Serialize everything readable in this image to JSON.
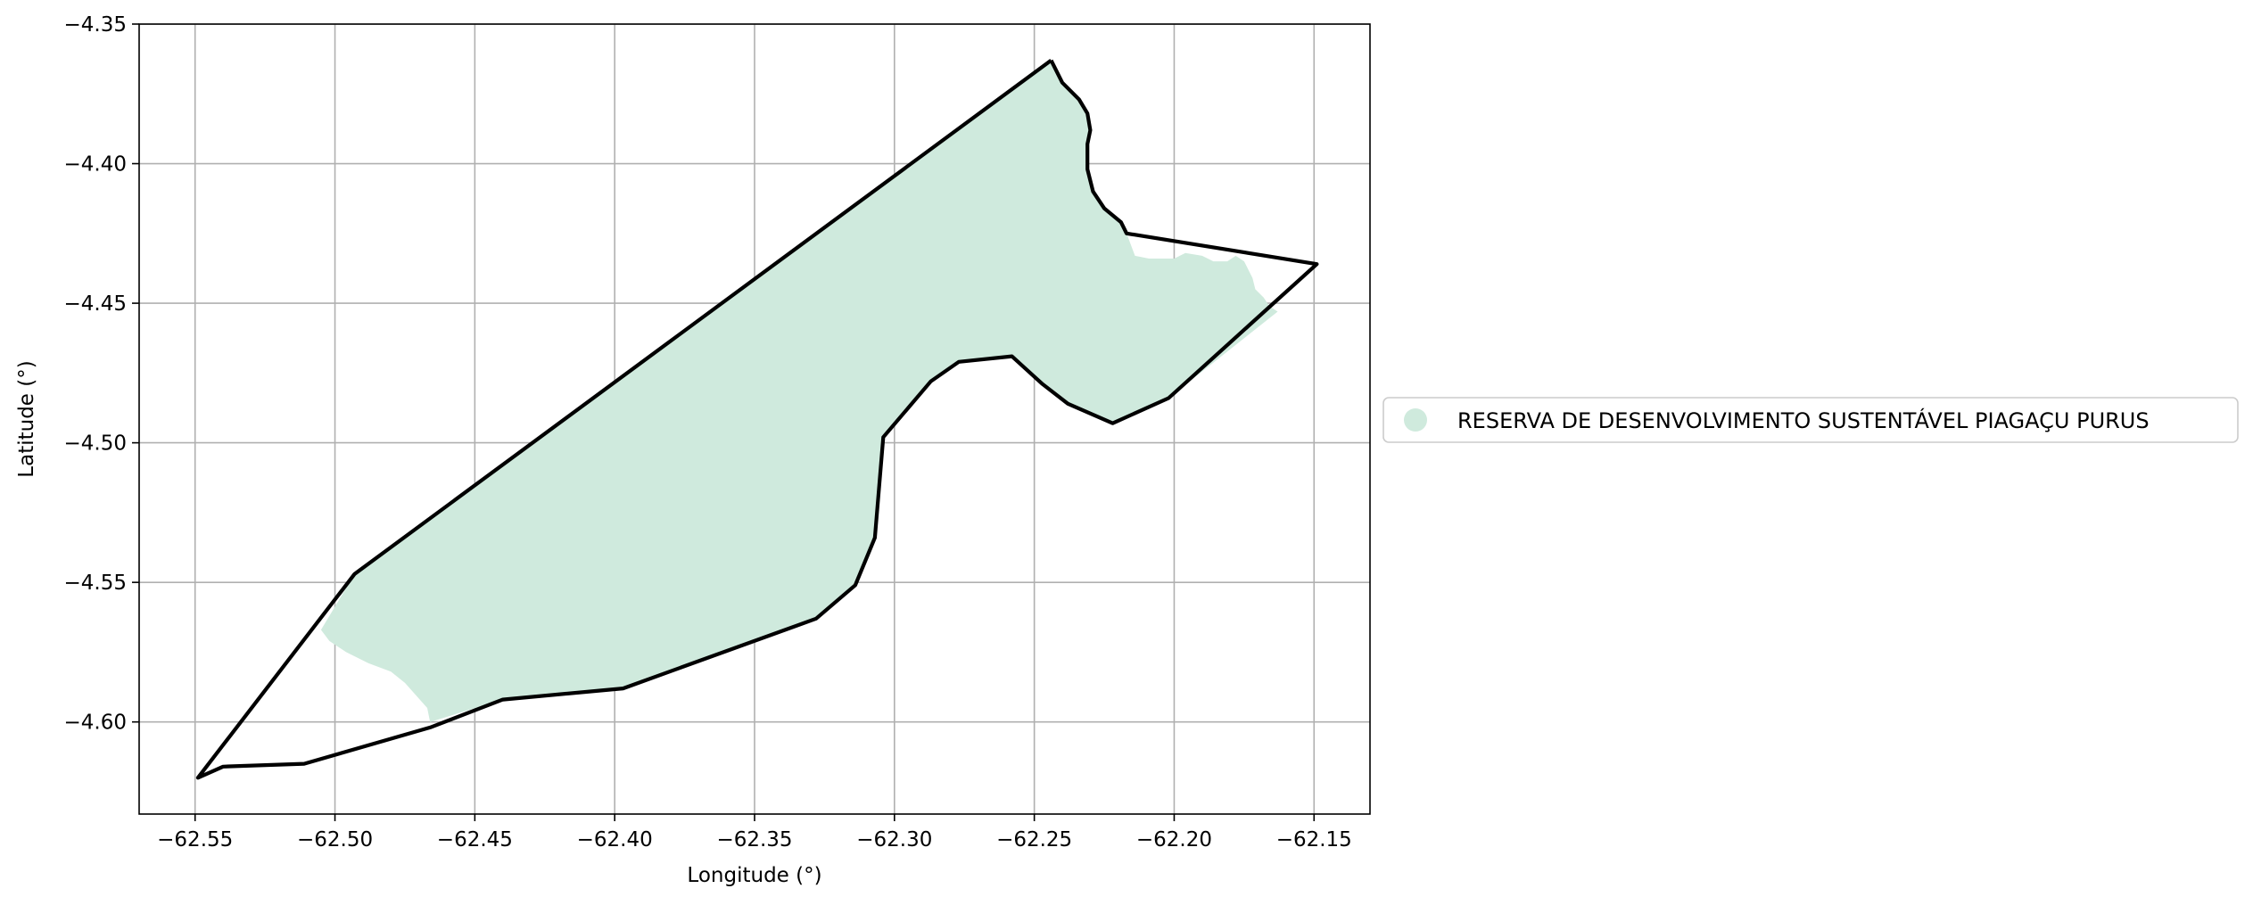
{
  "chart_data": {
    "type": "map",
    "xlabel": "Longitude (°)",
    "ylabel": "Latitude (°)",
    "xlim": [
      -62.57,
      -62.13
    ],
    "ylim": [
      -4.633,
      -4.35
    ],
    "xticks": [
      -62.55,
      -62.5,
      -62.45,
      -62.4,
      -62.35,
      -62.3,
      -62.25,
      -62.2,
      -62.15
    ],
    "yticks": [
      -4.35,
      -4.4,
      -4.45,
      -4.5,
      -4.55,
      -4.6
    ],
    "xtick_labels": [
      "−62.55",
      "−62.50",
      "−62.45",
      "−62.40",
      "−62.35",
      "−62.30",
      "−62.25",
      "−62.20",
      "−62.15"
    ],
    "ytick_labels": [
      "−4.35",
      "−4.40",
      "−4.45",
      "−4.50",
      "−4.55",
      "−4.60"
    ],
    "grid": true,
    "legend_position": "right-center",
    "colors": {
      "area_fill": "#cfeadd",
      "boundary": "#000000",
      "grid": "#b0b0b0"
    },
    "series": [
      {
        "name": "RESERVA DE DESENVOLVIMENTO SUSTENTÁVEL PIAGAÇU PURUS",
        "kind": "area",
        "points": [
          [
            -62.244,
            -4.363
          ],
          [
            -62.24,
            -4.371
          ],
          [
            -62.234,
            -4.377
          ],
          [
            -62.231,
            -4.382
          ],
          [
            -62.23,
            -4.388
          ],
          [
            -62.231,
            -4.393
          ],
          [
            -62.231,
            -4.402
          ],
          [
            -62.229,
            -4.41
          ],
          [
            -62.225,
            -4.416
          ],
          [
            -62.219,
            -4.421
          ],
          [
            -62.217,
            -4.425
          ],
          [
            -62.214,
            -4.433
          ],
          [
            -62.209,
            -4.434
          ],
          [
            -62.2,
            -4.434
          ],
          [
            -62.196,
            -4.432
          ],
          [
            -62.19,
            -4.433
          ],
          [
            -62.186,
            -4.435
          ],
          [
            -62.181,
            -4.435
          ],
          [
            -62.178,
            -4.433
          ],
          [
            -62.175,
            -4.435
          ],
          [
            -62.172,
            -4.441
          ],
          [
            -62.171,
            -4.445
          ],
          [
            -62.168,
            -4.448
          ],
          [
            -62.166,
            -4.451
          ],
          [
            -62.163,
            -4.453
          ],
          [
            -62.202,
            -4.484
          ],
          [
            -62.222,
            -4.493
          ],
          [
            -62.238,
            -4.486
          ],
          [
            -62.247,
            -4.479
          ],
          [
            -62.258,
            -4.469
          ],
          [
            -62.277,
            -4.471
          ],
          [
            -62.287,
            -4.478
          ],
          [
            -62.304,
            -4.498
          ],
          [
            -62.307,
            -4.534
          ],
          [
            -62.314,
            -4.551
          ],
          [
            -62.328,
            -4.563
          ],
          [
            -62.397,
            -4.588
          ],
          [
            -62.44,
            -4.592
          ],
          [
            -62.466,
            -4.6
          ],
          [
            -62.467,
            -4.595
          ],
          [
            -62.475,
            -4.586
          ],
          [
            -62.48,
            -4.582
          ],
          [
            -62.488,
            -4.579
          ],
          [
            -62.496,
            -4.575
          ],
          [
            -62.502,
            -4.571
          ],
          [
            -62.505,
            -4.567
          ],
          [
            -62.493,
            -4.547
          ]
        ]
      },
      {
        "name": "",
        "kind": "boundary",
        "points": [
          [
            -62.244,
            -4.363
          ],
          [
            -62.24,
            -4.371
          ],
          [
            -62.234,
            -4.377
          ],
          [
            -62.231,
            -4.382
          ],
          [
            -62.23,
            -4.388
          ],
          [
            -62.231,
            -4.393
          ],
          [
            -62.231,
            -4.402
          ],
          [
            -62.229,
            -4.41
          ],
          [
            -62.225,
            -4.416
          ],
          [
            -62.219,
            -4.421
          ],
          [
            -62.217,
            -4.425
          ],
          [
            -62.149,
            -4.436
          ],
          [
            -62.202,
            -4.484
          ],
          [
            -62.222,
            -4.493
          ],
          [
            -62.238,
            -4.486
          ],
          [
            -62.247,
            -4.479
          ],
          [
            -62.258,
            -4.469
          ],
          [
            -62.277,
            -4.471
          ],
          [
            -62.287,
            -4.478
          ],
          [
            -62.304,
            -4.498
          ],
          [
            -62.307,
            -4.534
          ],
          [
            -62.314,
            -4.551
          ],
          [
            -62.328,
            -4.563
          ],
          [
            -62.397,
            -4.588
          ],
          [
            -62.44,
            -4.592
          ],
          [
            -62.466,
            -4.602
          ],
          [
            -62.511,
            -4.615
          ],
          [
            -62.54,
            -4.616
          ],
          [
            -62.549,
            -4.62
          ],
          [
            -62.493,
            -4.547
          ],
          [
            -62.244,
            -4.363
          ]
        ]
      }
    ]
  }
}
